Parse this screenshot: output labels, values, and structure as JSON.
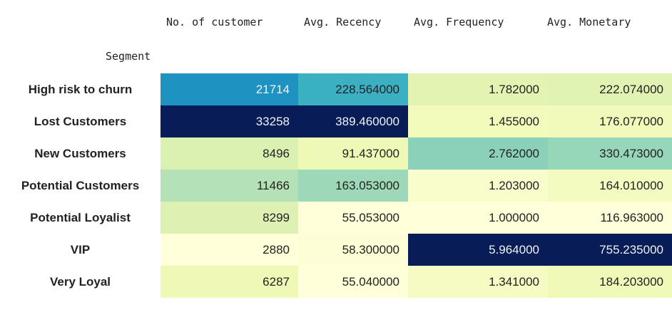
{
  "table": {
    "index_name": "Segment",
    "columns": [
      "No. of customer",
      "Avg. Recency",
      "Avg. Frequency",
      "Avg. Monetary"
    ]
  },
  "chart_data": {
    "type": "table",
    "colormap": "YlGnBu",
    "columns": [
      "No. of customer",
      "Avg. Recency",
      "Avg. Frequency",
      "Avg. Monetary"
    ],
    "rows": [
      {
        "segment": "High risk to churn",
        "cells": [
          "21714",
          "228.564000",
          "1.782000",
          "222.074000"
        ],
        "values": [
          21714,
          228.564,
          1.782,
          222.074
        ]
      },
      {
        "segment": "Lost Customers",
        "cells": [
          "33258",
          "389.460000",
          "1.455000",
          "176.077000"
        ],
        "values": [
          33258,
          389.46,
          1.455,
          176.077
        ]
      },
      {
        "segment": "New Customers",
        "cells": [
          "8496",
          "91.437000",
          "2.762000",
          "330.473000"
        ],
        "values": [
          8496,
          91.437,
          2.762,
          330.473
        ]
      },
      {
        "segment": "Potential Customers",
        "cells": [
          "11466",
          "163.053000",
          "1.203000",
          "164.010000"
        ],
        "values": [
          11466,
          163.053,
          1.203,
          164.01
        ]
      },
      {
        "segment": "Potential Loyalist",
        "cells": [
          "8299",
          "55.053000",
          "1.000000",
          "116.963000"
        ],
        "values": [
          8299,
          55.053,
          1.0,
          116.963
        ]
      },
      {
        "segment": "VIP",
        "cells": [
          "2880",
          "58.300000",
          "5.964000",
          "755.235000"
        ],
        "values": [
          2880,
          58.3,
          5.964,
          755.235
        ]
      },
      {
        "segment": "Very Loyal",
        "cells": [
          "6287",
          "55.040000",
          "1.341000",
          "184.203000"
        ],
        "values": [
          6287,
          55.04,
          1.341,
          184.203
        ]
      }
    ]
  }
}
